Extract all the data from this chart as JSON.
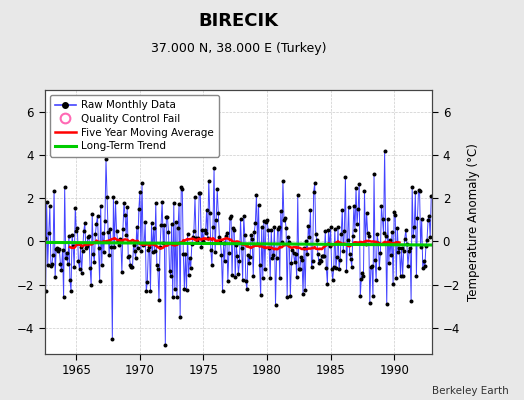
{
  "title": "BIRECIK",
  "subtitle": "37.000 N, 38.000 E (Turkey)",
  "ylabel": "Temperature Anomaly (°C)",
  "credit": "Berkeley Earth",
  "background_color": "#e8e8e8",
  "plot_background": "#ffffff",
  "xlim": [
    1962.5,
    1993.0
  ],
  "ylim": [
    -5.2,
    7.0
  ],
  "yticks": [
    -4,
    -2,
    0,
    2,
    4,
    6
  ],
  "xticks": [
    1965,
    1970,
    1975,
    1980,
    1985,
    1990
  ],
  "start_year": 1962,
  "n_months": 372,
  "raw_color": "#4444ff",
  "dot_color": "#000000",
  "ma_color": "#ff0000",
  "trend_color": "#00cc00",
  "qc_color": "#ff69b4",
  "grid_color": "#cccccc",
  "seed": 42,
  "ma_window": 60
}
